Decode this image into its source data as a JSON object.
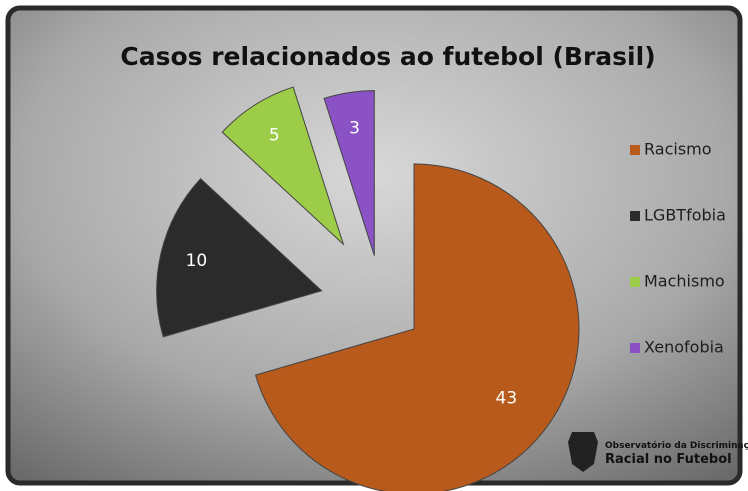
{
  "chart_data": {
    "type": "pie",
    "title": "Casos relacionados ao futebol (Brasil)",
    "categories": [
      "Racismo",
      "LGBTfobia",
      "Machismo",
      "Xenofobia"
    ],
    "values": [
      43,
      10,
      5,
      3
    ],
    "colors": [
      "#b85a1c",
      "#2b2b2b",
      "#9ccc48",
      "#8a52c4"
    ],
    "legend": "right"
  },
  "logo": {
    "line1": "Observatório da Discriminação",
    "line2": "Racial no Futebol"
  }
}
